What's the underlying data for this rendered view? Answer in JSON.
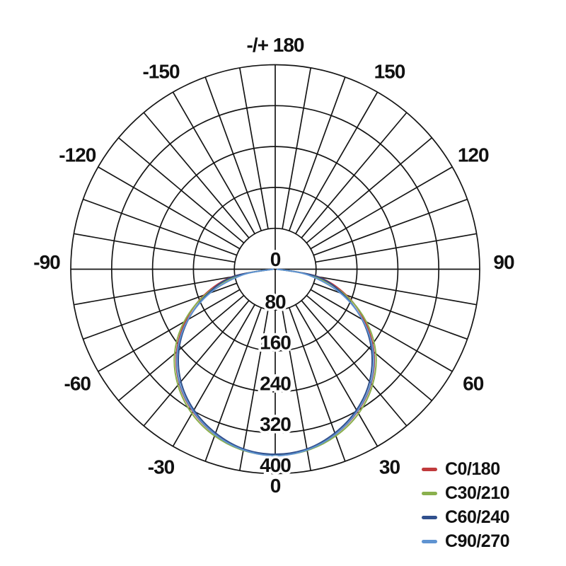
{
  "chart_data": {
    "type": "line",
    "variant": "polar-photometric",
    "grid": true,
    "legend_position": "bottom-right",
    "angle_axis": {
      "top_label": "-/+ 180",
      "spoke_step_deg": 10,
      "label_step_deg": 30,
      "labels": [
        {
          "angle": 180,
          "text": "-/+ 180"
        },
        {
          "angle": 150,
          "text": "150"
        },
        {
          "angle": 120,
          "text": "120"
        },
        {
          "angle": 90,
          "text": "90"
        },
        {
          "angle": 60,
          "text": "60"
        },
        {
          "angle": 30,
          "text": "30"
        },
        {
          "angle": 0,
          "text": "0"
        },
        {
          "angle": -30,
          "text": "-30"
        },
        {
          "angle": -60,
          "text": "-60"
        },
        {
          "angle": -90,
          "text": "-90"
        },
        {
          "angle": -120,
          "text": "-120"
        },
        {
          "angle": -150,
          "text": "-150"
        }
      ]
    },
    "radial_axis": {
      "ticks": [
        "0",
        "80",
        "160",
        "240",
        "320",
        "400"
      ],
      "max": 400
    },
    "angles_deg": [
      -90,
      -80,
      -70,
      -60,
      -50,
      -40,
      -30,
      -20,
      -10,
      0,
      10,
      20,
      30,
      40,
      50,
      60,
      70,
      80,
      90
    ],
    "series": [
      {
        "name": "C0/180",
        "color": "#c03a3c",
        "values": [
          6,
          86,
          148,
          202,
          252,
          292,
          322,
          344,
          358,
          363,
          358,
          344,
          322,
          292,
          252,
          202,
          148,
          86,
          6
        ]
      },
      {
        "name": "C30/210",
        "color": "#8ab04d",
        "values": [
          5,
          76,
          145,
          206,
          257,
          296,
          326,
          347,
          360,
          364,
          360,
          347,
          326,
          296,
          257,
          206,
          145,
          76,
          5
        ]
      },
      {
        "name": "C60/240",
        "color": "#30508d",
        "values": [
          7,
          84,
          140,
          196,
          246,
          287,
          318,
          341,
          357,
          362,
          357,
          341,
          318,
          287,
          246,
          196,
          140,
          84,
          7
        ]
      },
      {
        "name": "C90/270",
        "color": "#5f93d1",
        "values": [
          4,
          66,
          135,
          197,
          250,
          291,
          321,
          344,
          359,
          365,
          359,
          344,
          321,
          291,
          250,
          197,
          135,
          66,
          4
        ]
      }
    ]
  },
  "legend": {
    "items": [
      {
        "label": "C0/180",
        "color": "#c03a3c"
      },
      {
        "label": "C30/210",
        "color": "#8ab04d"
      },
      {
        "label": "C60/240",
        "color": "#30508d"
      },
      {
        "label": "C90/270",
        "color": "#5f93d1"
      }
    ]
  }
}
